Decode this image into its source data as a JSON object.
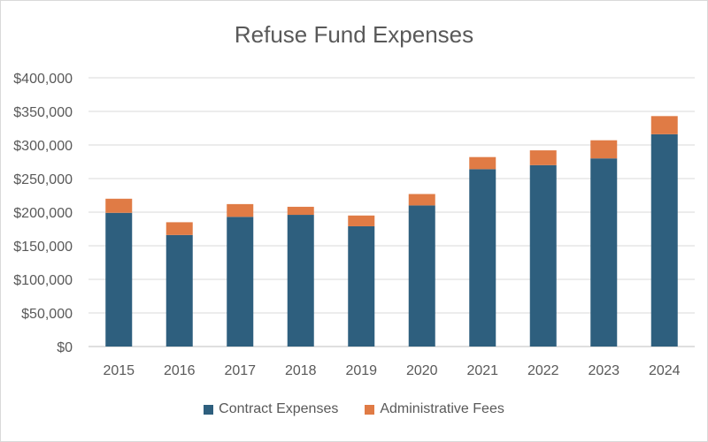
{
  "chart_data": {
    "type": "bar",
    "stacked": true,
    "title": "Refuse Fund Expenses",
    "xlabel": "",
    "ylabel": "",
    "categories": [
      "2015",
      "2016",
      "2017",
      "2018",
      "2019",
      "2020",
      "2021",
      "2022",
      "2023",
      "2024"
    ],
    "series": [
      {
        "name": "Contract Expenses",
        "color": "#2e5f7e",
        "values": [
          199000,
          166000,
          193000,
          196000,
          179000,
          210000,
          264000,
          270000,
          280000,
          316000
        ]
      },
      {
        "name": "Administrative Fees",
        "color": "#e07b45",
        "values": [
          21000,
          19000,
          19000,
          12000,
          16000,
          17000,
          18000,
          22000,
          27000,
          27000
        ]
      }
    ],
    "ylim": [
      0,
      400000
    ],
    "y_ticks": [
      "$0",
      "$50,000",
      "$100,000",
      "$150,000",
      "$200,000",
      "$250,000",
      "$300,000",
      "$350,000",
      "$400,000"
    ],
    "grid": true,
    "legend_position": "bottom"
  }
}
